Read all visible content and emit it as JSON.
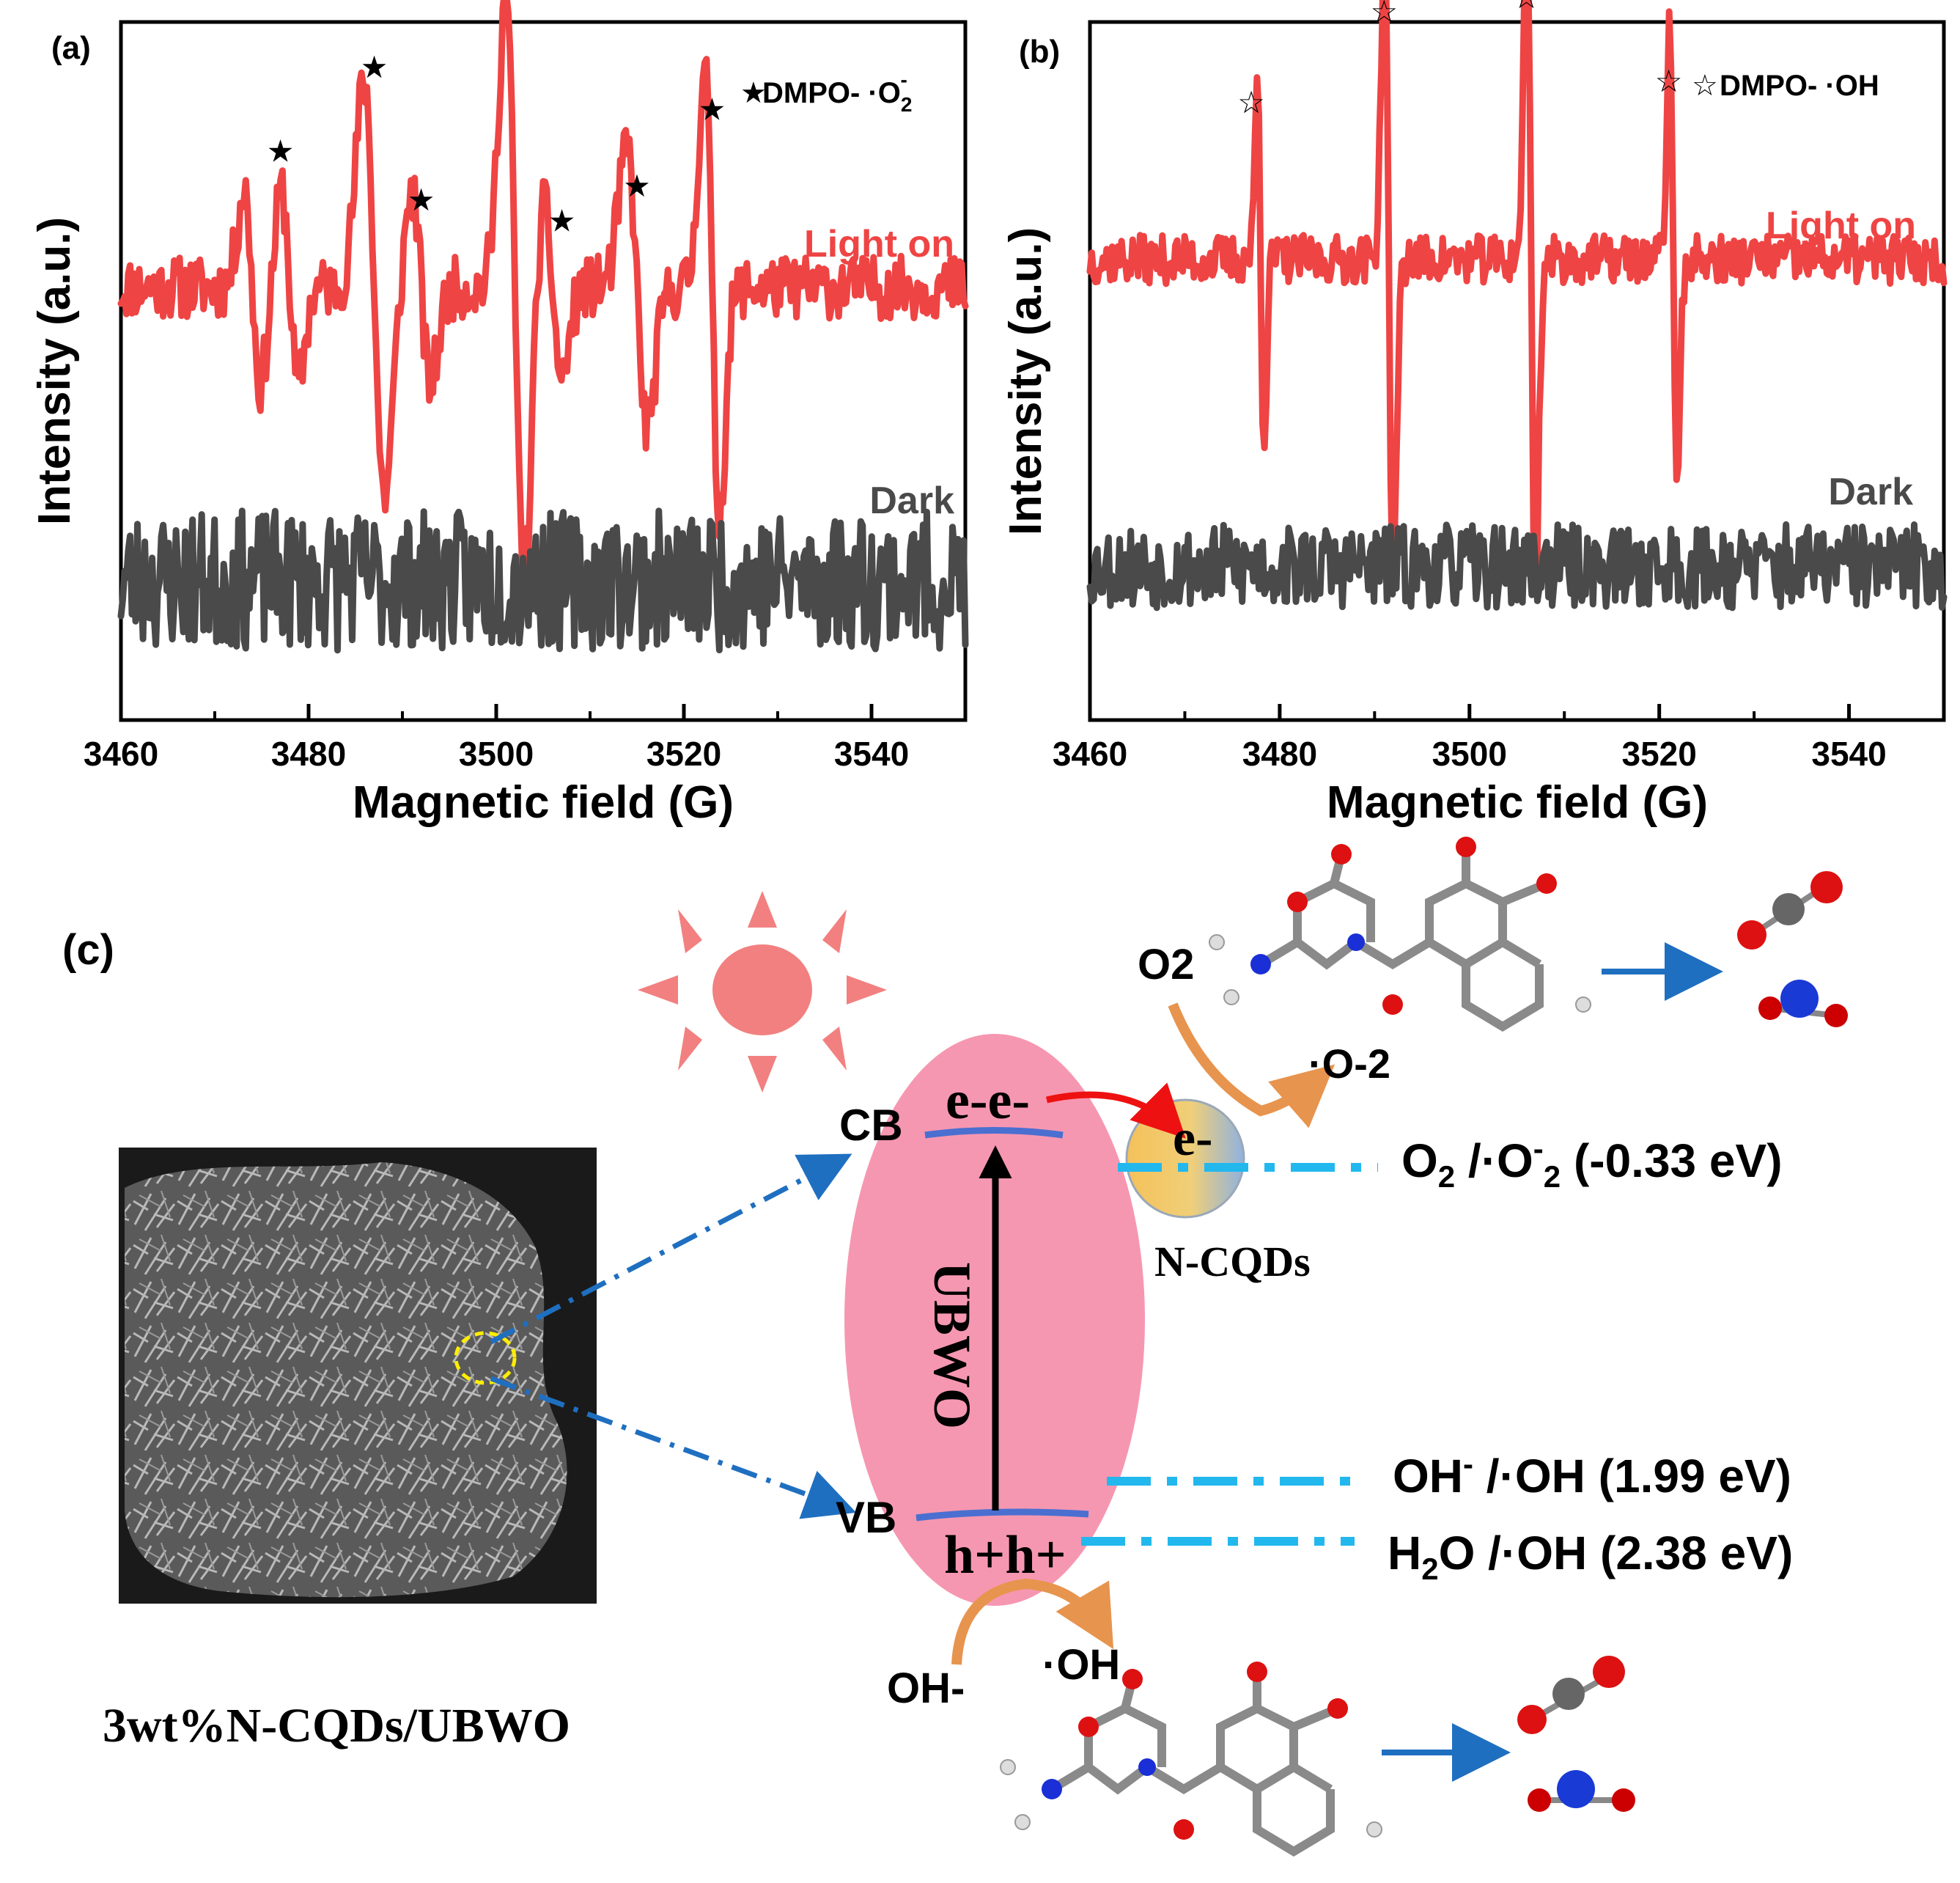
{
  "colors": {
    "light_on": "#ef4444",
    "dark": "#4a4a4a",
    "ellipse": "#f58ca8",
    "sun": "#f28080",
    "dashed": "#22b8ee",
    "arrow_blue": "#1f6fc0",
    "band": "#4a6fd0",
    "curve_orange": "#e7944e",
    "electron_arrow": "#ee1111"
  },
  "chart_data": [
    {
      "panel": "(a)",
      "type": "line",
      "title": "",
      "xlabel": "Magnetic field (G)",
      "ylabel": "Intensity (a.u.)",
      "xlim": [
        3460,
        3550
      ],
      "x_ticks": [
        3460,
        3480,
        3500,
        3520,
        3540
      ],
      "x_tick_labels": [
        "3460",
        "3480",
        "3500",
        "3520",
        "3540"
      ],
      "legend": {
        "symbol": "★",
        "text": "DMPO- ·O",
        "sub": "2",
        "sup": "-",
        "placement": "top-right"
      },
      "series": [
        {
          "name": "Light on",
          "baseline": 0.62,
          "noise": 0.045,
          "seed": 11,
          "features": [
            {
              "x": 3474,
              "amp": 0.14,
              "width": 0.9
            },
            {
              "x": 3478,
              "amp": 0.14,
              "width": 0.9
            },
            {
              "x": 3487,
              "amp": 0.3,
              "width": 1.1
            },
            {
              "x": 3492,
              "amp": 0.14,
              "width": 1.0
            },
            {
              "x": 3502,
              "amp": 0.42,
              "width": 1.0
            },
            {
              "x": 3506,
              "amp": 0.13,
              "width": 1.0
            },
            {
              "x": 3515,
              "amp": 0.2,
              "width": 1.1
            },
            {
              "x": 3523,
              "amp": 0.33,
              "width": 0.8
            }
          ]
        },
        {
          "name": "Dark",
          "baseline": 0.2,
          "noise": 0.1,
          "seed": 23,
          "features": []
        }
      ],
      "star_positions": [
        3477,
        3487,
        3492,
        3502,
        3507,
        3515,
        3523
      ],
      "star_heights": [
        0.8,
        0.92,
        0.73,
        1.04,
        0.7,
        0.75,
        0.86
      ]
    },
    {
      "panel": "(b)",
      "type": "line",
      "title": "",
      "xlabel": "Magnetic field (G)",
      "ylabel": "Intensity (a.u.)",
      "xlim": [
        3460,
        3550
      ],
      "x_ticks": [
        3460,
        3480,
        3500,
        3520,
        3540
      ],
      "x_tick_labels": [
        "3460",
        "3480",
        "3500",
        "3520",
        "3540"
      ],
      "legend": {
        "symbol": "☆",
        "text": "DMPO- ·OH",
        "placement": "top-right"
      },
      "series": [
        {
          "name": "Light on",
          "baseline": 0.66,
          "noise": 0.035,
          "seed": 37,
          "features": [
            {
              "x": 3478,
              "amp": 0.26,
              "width": 0.35
            },
            {
              "x": 3491.5,
              "amp": 0.48,
              "width": 0.45
            },
            {
              "x": 3506.5,
              "amp": 0.48,
              "width": 0.45
            },
            {
              "x": 3521.5,
              "amp": 0.33,
              "width": 0.4
            }
          ]
        },
        {
          "name": "Dark",
          "baseline": 0.22,
          "noise": 0.06,
          "seed": 53,
          "features": []
        }
      ],
      "star_positions": [
        3477,
        3491,
        3506,
        3521
      ],
      "star_heights": [
        0.87,
        1.0,
        1.02,
        0.9
      ]
    }
  ],
  "panel_c": {
    "label": "(c)",
    "sample_label": "3wt%N-CQDs/UBWO",
    "ellipse_label": "UBWO",
    "cb_label": "CB",
    "vb_label": "VB",
    "electrons": "e-e-",
    "electron_qd": "e-",
    "holes": "h+h+",
    "qd_label": "N-CQDs",
    "o2": "O2",
    "superoxide": "·O-2",
    "oh_minus": "OH-",
    "oh_radical": "·OH",
    "potentials": [
      {
        "pre": "O",
        "sub": "2",
        "mid": " /·O",
        "sup": "-",
        "sub2": "2",
        "post": " (-0.33 eV)"
      },
      {
        "pre": "OH",
        "sup": "-",
        "mid": " /·OH",
        "post": " (1.99 eV)"
      },
      {
        "pre": "H",
        "sub": "2",
        "mid": "O /·OH",
        "post": " (2.38 eV)"
      }
    ]
  }
}
